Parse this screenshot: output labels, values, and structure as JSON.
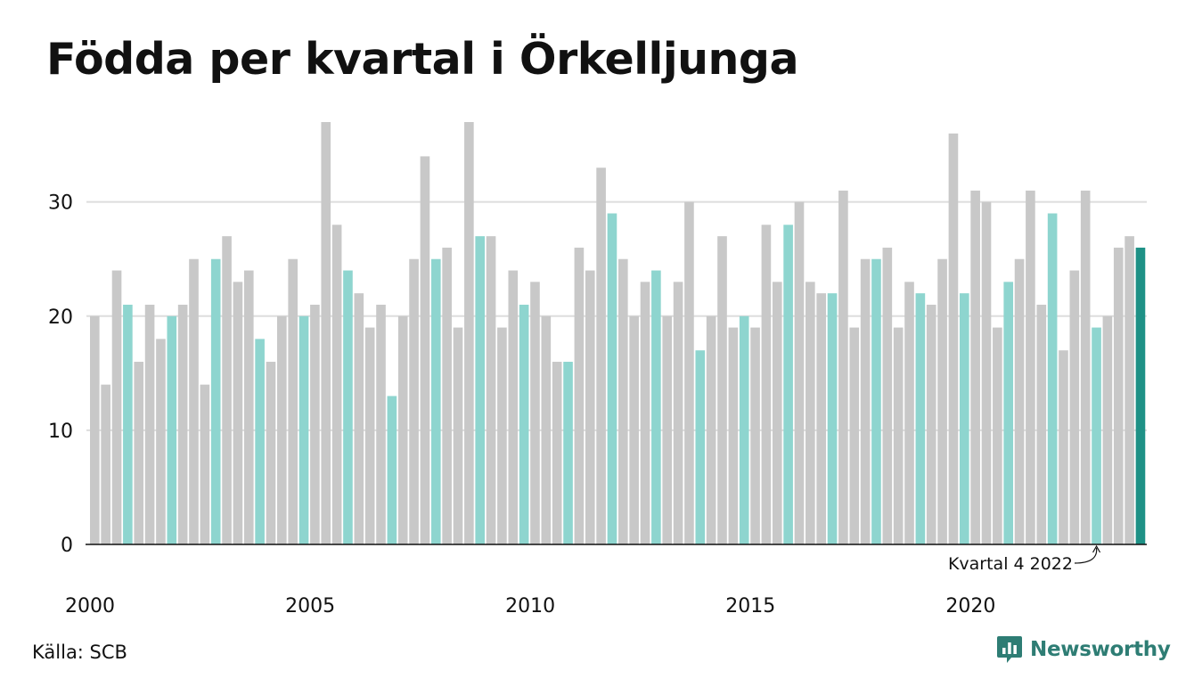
{
  "title": "Födda per kvartal i Örkelljunga",
  "source": "Källa: SCB",
  "brand": {
    "name": "Newsworthy",
    "icon": "newsworthy-logo-icon"
  },
  "colors": {
    "default": "#c8c8c8",
    "highlight": "#8ed5cf",
    "latest": "#1e9186",
    "grid": "#dddddd",
    "axis": "#111111",
    "brand": "#2e7d74"
  },
  "chart_data": {
    "type": "bar",
    "title": "Födda per kvartal i Örkelljunga",
    "xlabel": "",
    "ylabel": "",
    "ylim": [
      0,
      37
    ],
    "yticks": [
      0,
      10,
      20,
      30
    ],
    "xticks": [
      "2000",
      "2005",
      "2010",
      "2015",
      "2020"
    ],
    "grid": true,
    "highlight_quarter": 4,
    "annotation": {
      "text": "Kvartal 4 2022",
      "index": 91
    },
    "series": [
      {
        "values": [
          20,
          14,
          24,
          21,
          16,
          21,
          18,
          20,
          21,
          25,
          14,
          25,
          27,
          23,
          24,
          18,
          16,
          20,
          25,
          20,
          21,
          37,
          28,
          24,
          22,
          19,
          21,
          13,
          20,
          25,
          34,
          25,
          26,
          19,
          37,
          27,
          27,
          19,
          24,
          21,
          23,
          20,
          16,
          16,
          26,
          24,
          33,
          29,
          25,
          20,
          23,
          24,
          20,
          23,
          30,
          17,
          20,
          27,
          19,
          20,
          19,
          28,
          23,
          28,
          30,
          23,
          22,
          22,
          31,
          19,
          25,
          25,
          26,
          19,
          23,
          22,
          21,
          25,
          36,
          22,
          31,
          30,
          19,
          23,
          25,
          31,
          21,
          29,
          17,
          24,
          31,
          19,
          20,
          26,
          27,
          26
        ]
      }
    ]
  }
}
